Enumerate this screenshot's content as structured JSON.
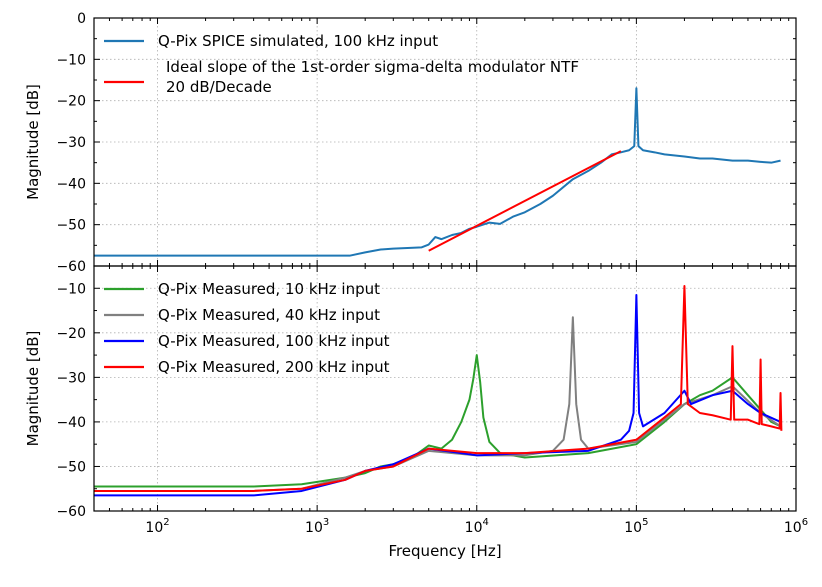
{
  "chart_data": [
    {
      "type": "line",
      "panel": "top",
      "xlabel": "",
      "ylabel": "Magnitude [dB]",
      "xscale": "log",
      "xlim": [
        40,
        1000000
      ],
      "ylim": [
        -60,
        0
      ],
      "yticks": [
        0,
        -10,
        -20,
        -30,
        -40,
        -50,
        -60
      ],
      "ytick_labels": [
        "0",
        "−10",
        "−20",
        "−30",
        "−40",
        "−50",
        "−60"
      ],
      "grid": true,
      "legend_position": "top-left",
      "series": [
        {
          "name": "Q-Pix SPICE simulated, 100 kHz input",
          "color": "#1f77b4",
          "x": [
            40,
            500,
            1000,
            1600,
            2000,
            2500,
            3000,
            4000,
            4500,
            5000,
            5500,
            6000,
            7000,
            8000,
            9000,
            10000,
            12000,
            14000,
            17000,
            20000,
            25000,
            30000,
            40000,
            50000,
            60000,
            70000,
            80000,
            90000,
            97000,
            100000,
            103000,
            110000,
            130000,
            150000,
            200000,
            250000,
            300000,
            400000,
            500000,
            600000,
            700000,
            800000
          ],
          "y": [
            -57.5,
            -57.5,
            -57.5,
            -57.5,
            -56.7,
            -56,
            -55.8,
            -55.6,
            -55.5,
            -54.8,
            -53,
            -53.5,
            -52.5,
            -52,
            -51,
            -50.5,
            -49.5,
            -49.8,
            -48,
            -47,
            -45,
            -43,
            -39,
            -37,
            -35,
            -33,
            -32.5,
            -32,
            -31,
            -17,
            -31,
            -32,
            -32.5,
            -33,
            -33.5,
            -34,
            -34,
            -34.5,
            -34.5,
            -34.8,
            -35,
            -34.5
          ]
        },
        {
          "name": "Ideal slope of the 1st-order sigma-delta modulator NTF\n20 dB/Decade",
          "color": "#ff0000",
          "x": [
            5000,
            80000
          ],
          "y": [
            -56.3,
            -32.2
          ]
        }
      ]
    },
    {
      "type": "line",
      "panel": "bottom",
      "xlabel": "Frequency [Hz]",
      "ylabel": "Magnitude [dB]",
      "xscale": "log",
      "xlim": [
        40,
        1000000
      ],
      "ylim": [
        -60,
        -5
      ],
      "xticks": [
        100,
        1000,
        10000,
        100000,
        1000000
      ],
      "xtick_labels": [
        {
          "base": "10",
          "exp": "2"
        },
        {
          "base": "10",
          "exp": "3"
        },
        {
          "base": "10",
          "exp": "4"
        },
        {
          "base": "10",
          "exp": "5"
        },
        {
          "base": "10",
          "exp": "6"
        }
      ],
      "yticks": [
        -10,
        -20,
        -30,
        -40,
        -50,
        -60
      ],
      "ytick_labels": [
        "−10",
        "−20",
        "−30",
        "−40",
        "−50",
        "−60"
      ],
      "grid": true,
      "legend_position": "top-left",
      "series": [
        {
          "name": "Q-Pix Measured, 10 kHz input",
          "color": "#2ca02c",
          "x": [
            40,
            400,
            800,
            1500,
            2000,
            2500,
            3000,
            4000,
            5000,
            6000,
            7000,
            8000,
            9000,
            9500,
            10000,
            10500,
            11000,
            12000,
            14000,
            20000,
            50000,
            100000,
            150000,
            200000,
            250000,
            300000,
            400000,
            500000,
            700000,
            800000
          ],
          "y": [
            -54.5,
            -54.5,
            -54,
            -52.5,
            -51.5,
            -50,
            -49.5,
            -47.8,
            -45.3,
            -46,
            -44,
            -40,
            -35,
            -30.5,
            -25,
            -31,
            -39,
            -44.5,
            -47,
            -48,
            -47,
            -45,
            -40,
            -36,
            -34,
            -33,
            -30,
            -34,
            -40,
            -41
          ]
        },
        {
          "name": "Q-Pix Measured, 40 kHz input",
          "color": "#808080",
          "x": [
            40,
            400,
            800,
            1500,
            2000,
            3000,
            5000,
            10000,
            20000,
            30000,
            35000,
            38000,
            40000,
            42000,
            45000,
            50000,
            100000,
            200000,
            300000,
            400000,
            600000,
            800000
          ],
          "y": [
            -55.5,
            -55.5,
            -55,
            -52.5,
            -51,
            -50,
            -46.5,
            -47.5,
            -47.5,
            -46.5,
            -44,
            -36,
            -16.5,
            -36,
            -44,
            -46,
            -44.5,
            -36,
            -34,
            -32,
            -38,
            -41
          ]
        },
        {
          "name": "Q-Pix Measured, 100 kHz input",
          "color": "#0000ff",
          "x": [
            40,
            400,
            800,
            1500,
            2000,
            3000,
            5000,
            10000,
            20000,
            50000,
            80000,
            90000,
            96000,
            100000,
            104000,
            110000,
            150000,
            200000,
            220000,
            300000,
            400000,
            500000,
            600000,
            800000
          ],
          "y": [
            -56.5,
            -56.5,
            -55.5,
            -53,
            -51,
            -49.5,
            -46,
            -47.5,
            -47,
            -46.5,
            -44,
            -42,
            -38,
            -11.5,
            -38,
            -41,
            -38,
            -33,
            -36,
            -34,
            -33,
            -36,
            -38,
            -40
          ]
        },
        {
          "name": "Q-Pix Measured, 200 kHz input",
          "color": "#ff0000",
          "x": [
            40,
            400,
            800,
            1500,
            2000,
            3000,
            5000,
            10000,
            20000,
            50000,
            100000,
            150000,
            190000,
            200000,
            210000,
            250000,
            300000,
            390000,
            400000,
            410000,
            500000,
            590000,
            600000,
            610000,
            700000,
            790000,
            800000,
            810000
          ],
          "y": [
            -55.5,
            -55.5,
            -55,
            -53,
            -51,
            -50,
            -46,
            -47,
            -47,
            -46,
            -44,
            -39,
            -36,
            -9.5,
            -36,
            -38,
            -38.5,
            -39.5,
            -23,
            -39.5,
            -39.5,
            -40.5,
            -26,
            -40.5,
            -41,
            -41.5,
            -33.5,
            -42
          ]
        }
      ]
    }
  ]
}
